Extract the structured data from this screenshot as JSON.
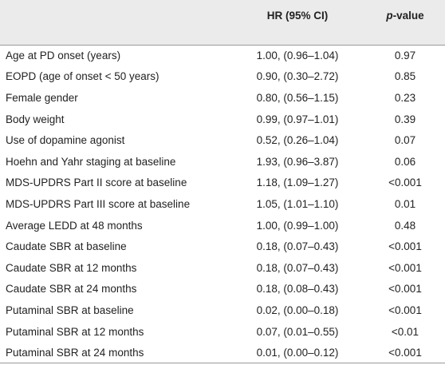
{
  "table": {
    "header": {
      "hr": "HR (95% CI)",
      "p_italic": "p",
      "p_rest": "-value"
    },
    "rows": [
      [
        "Age at PD onset (years)",
        "1.00, (0.96–1.04)",
        "0.97"
      ],
      [
        "EOPD (age of onset < 50 years)",
        "0.90, (0.30–2.72)",
        "0.85"
      ],
      [
        "Female gender",
        "0.80, (0.56–1.15)",
        "0.23"
      ],
      [
        "Body weight",
        "0.99, (0.97–1.01)",
        "0.39"
      ],
      [
        "Use of dopamine agonist",
        "0.52, (0.26–1.04)",
        "0.07"
      ],
      [
        "Hoehn and Yahr staging at baseline",
        "1.93, (0.96–3.87)",
        "0.06"
      ],
      [
        "MDS-UPDRS Part II score at baseline",
        "1.18, (1.09–1.27)",
        "<0.001"
      ],
      [
        "MDS-UPDRS Part III score at baseline",
        "1.05, (1.01–1.10)",
        "0.01"
      ],
      [
        "Average LEDD at 48 months",
        "1.00, (0.99–1.00)",
        "0.48"
      ],
      [
        "Caudate SBR at baseline",
        "0.18, (0.07–0.43)",
        "<0.001"
      ],
      [
        "Caudate SBR at 12 months",
        "0.18, (0.07–0.43)",
        "<0.001"
      ],
      [
        "Caudate SBR at 24 months",
        "0.18, (0.08–0.43)",
        "<0.001"
      ],
      [
        "Putaminal SBR at baseline",
        "0.02, (0.00–0.18)",
        "<0.001"
      ],
      [
        "Putaminal SBR at 12 months",
        "0.07, (0.01–0.55)",
        "<0.01"
      ],
      [
        "Putaminal SBR at 24 months",
        "0.01, (0.00–0.12)",
        "<0.001"
      ]
    ]
  }
}
